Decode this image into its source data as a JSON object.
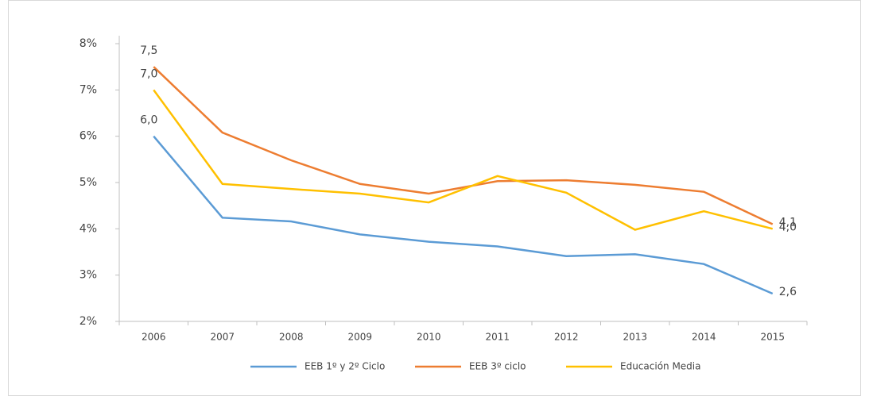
{
  "chart_data": {
    "type": "line",
    "categories": [
      "2006",
      "2007",
      "2008",
      "2009",
      "2010",
      "2011",
      "2012",
      "2013",
      "2014",
      "2015"
    ],
    "series": [
      {
        "name": "EEB 1º y 2º Ciclo",
        "color": "#5b9bd5",
        "values": [
          6.0,
          4.24,
          4.16,
          3.88,
          3.72,
          3.62,
          3.41,
          3.45,
          3.24,
          2.6
        ],
        "value_labels": [
          "6,0",
          null,
          null,
          null,
          null,
          null,
          null,
          null,
          null,
          "2,6"
        ]
      },
      {
        "name": "EEB 3º ciclo",
        "color": "#ed7d31",
        "values": [
          7.5,
          6.08,
          5.48,
          4.97,
          4.76,
          5.03,
          5.05,
          4.95,
          4.8,
          4.1
        ],
        "value_labels": [
          "7,5",
          null,
          null,
          null,
          null,
          null,
          null,
          null,
          null,
          "4,1"
        ]
      },
      {
        "name": "Educación Media",
        "color": "#ffc000",
        "values": [
          7.0,
          4.97,
          4.86,
          4.76,
          4.57,
          5.14,
          4.78,
          3.98,
          4.38,
          4.0
        ],
        "value_labels": [
          "7,0",
          null,
          null,
          null,
          null,
          null,
          null,
          null,
          null,
          "4,0"
        ]
      }
    ],
    "ylim": [
      2,
      8
    ],
    "yticks": [
      {
        "value": 2,
        "label": "2%"
      },
      {
        "value": 3,
        "label": "3%"
      },
      {
        "value": 4,
        "label": "4%"
      },
      {
        "value": 5,
        "label": "5%"
      },
      {
        "value": 6,
        "label": "6%"
      },
      {
        "value": 7,
        "label": "7%"
      },
      {
        "value": 8,
        "label": "8%"
      }
    ],
    "grid": false
  }
}
